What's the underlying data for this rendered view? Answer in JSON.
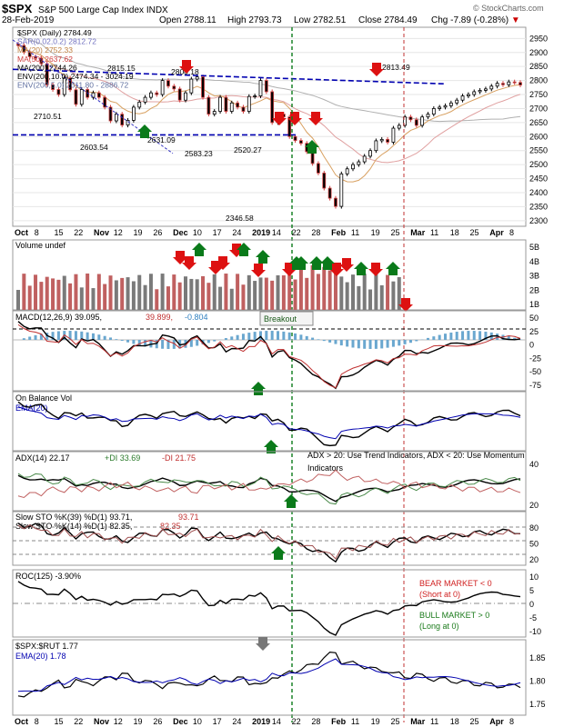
{
  "header": {
    "symbol": "$SPX",
    "name": "S&P 500 Large Cap Index",
    "exchange": "INDX",
    "date": "28-Feb-2019",
    "open_label": "Open",
    "open": "2788.11",
    "high_label": "High",
    "high": "2793.73",
    "low_label": "Low",
    "low": "2782.51",
    "close_label": "Close",
    "close": "2784.49",
    "chg_label": "Chg",
    "chg": "-7.89 (-0.28%)",
    "copyright": "© StockCharts.com"
  },
  "colors": {
    "up": "#7a7a7a",
    "down": "#d04040",
    "blue": "#0000b0",
    "green_arrow": "#0a7a1a",
    "red_arrow": "#dd1111"
  },
  "main_legend": [
    {
      "text": "$SPX (Daily) 2784.49",
      "color": "#000000"
    },
    {
      "text": "SAR(0.02,0.2) 2812.72",
      "color": "#7070c0"
    },
    {
      "text": "MA(20) 2752.33",
      "color": "#c08040"
    },
    {
      "text": "MA(50) 2637.62",
      "color": "#d04040"
    },
    {
      "text": "MA(200) 2744.26",
      "color": "#000000"
    },
    {
      "text": "ENV(200,10.0) 2474.34 - 3024.19",
      "color": "#000000"
    },
    {
      "text": "ENV(200,5.0) 2611.80 - 2886.72",
      "color": "#6070a0"
    }
  ],
  "price_annotations": [
    "2815.15",
    "2800.18",
    "2813.49",
    "2710.51",
    "2603.54",
    "2631.09",
    "2583.23",
    "2520.27",
    "2346.58"
  ],
  "x_axis_labels": [
    "Oct",
    "8",
    "15",
    "22",
    "Nov",
    "12",
    "19",
    "26",
    "Dec",
    "10",
    "17",
    "24",
    "2019",
    "14",
    "22",
    "28",
    "Feb",
    "11",
    "19",
    "25",
    "Mar",
    "11",
    "18",
    "25",
    "Apr",
    "8"
  ],
  "panels": {
    "volume": {
      "label": "Volume undef",
      "axis": [
        "5B",
        "4B",
        "3B",
        "2B",
        "1B"
      ]
    },
    "macd": {
      "label": "MACD(12,26,9)",
      "v1": "39.095",
      "v2": "39.899",
      "v3": "-0.804",
      "axis": [
        "50",
        "25",
        "0",
        "-25",
        "-50",
        "-75"
      ],
      "note": "Breakout"
    },
    "obv": {
      "label": "On Balance Vol",
      "ema": "EMA(20)"
    },
    "adx": {
      "label": "ADX(14)",
      "adx": "22.17",
      "pdi": "+DI 33.69",
      "mdi": "-DI 21.75",
      "note": "ADX > 20: Use Trend Indicators, ADX < 20: Use Momentum Indicators",
      "axis": [
        "40",
        "20"
      ]
    },
    "sto": {
      "label1": "Slow STO %K(39) %D(1)",
      "v1a": "93.71",
      "v1b": "93.71",
      "label2": "Slow STO %K(14) %D(1)",
      "v2a": "82.35",
      "v2b": "82.35",
      "axis": [
        "80",
        "50",
        "20"
      ]
    },
    "roc": {
      "label": "ROC(125)",
      "value": "-3.90%",
      "bear1": "BEAR MARKET < 0",
      "bear2": "(Short at 0)",
      "bull1": "BULL MARKET > 0",
      "bull2": "(Long at 0)",
      "axis": [
        "10",
        "5",
        "0",
        "-5",
        "-10"
      ]
    },
    "ratio": {
      "label": "$SPX:$RUT 1.77",
      "ema": "EMA(20) 1.78",
      "axis": [
        "1.85",
        "1.80",
        "1.75"
      ]
    }
  },
  "chart_data": {
    "type": "line",
    "title": "$SPX S&P 500 Large Cap Index INDX",
    "xlabel": "",
    "ylabel": "",
    "ylim": [
      2280,
      2990
    ],
    "price_ticks": [
      2950,
      2900,
      2850,
      2800,
      2750,
      2700,
      2650,
      2600,
      2550,
      2500,
      2450,
      2400,
      2350,
      2300
    ],
    "close_series": [
      2925,
      2901,
      2885,
      2880,
      2860,
      2785,
      2768,
      2750,
      2809,
      2767,
      2715,
      2768,
      2740,
      2756,
      2740,
      2705,
      2656,
      2680,
      2641,
      2658,
      2705,
      2723,
      2740,
      2756,
      2750,
      2800,
      2780,
      2770,
      2730,
      2756,
      2805,
      2813,
      2740,
      2680,
      2690,
      2740,
      2690,
      2720,
      2705,
      2690,
      2743,
      2745,
      2800,
      2760,
      2650,
      2680,
      2670,
      2600,
      2586,
      2576,
      2546,
      2504,
      2470,
      2416,
      2380,
      2351,
      2467,
      2485,
      2500,
      2510,
      2530,
      2550,
      2585,
      2590,
      2580,
      2630,
      2640,
      2670,
      2660,
      2640,
      2670,
      2680,
      2700,
      2705,
      2710,
      2720,
      2730,
      2745,
      2750,
      2760,
      2765,
      2770,
      2780,
      2790,
      2785,
      2795,
      2793,
      2784
    ],
    "resistance_line": {
      "from_value": 2840,
      "to_value": 2788
    },
    "support_line": 2606,
    "breakout_marker_x": "14",
    "last_close": 2784.49
  }
}
